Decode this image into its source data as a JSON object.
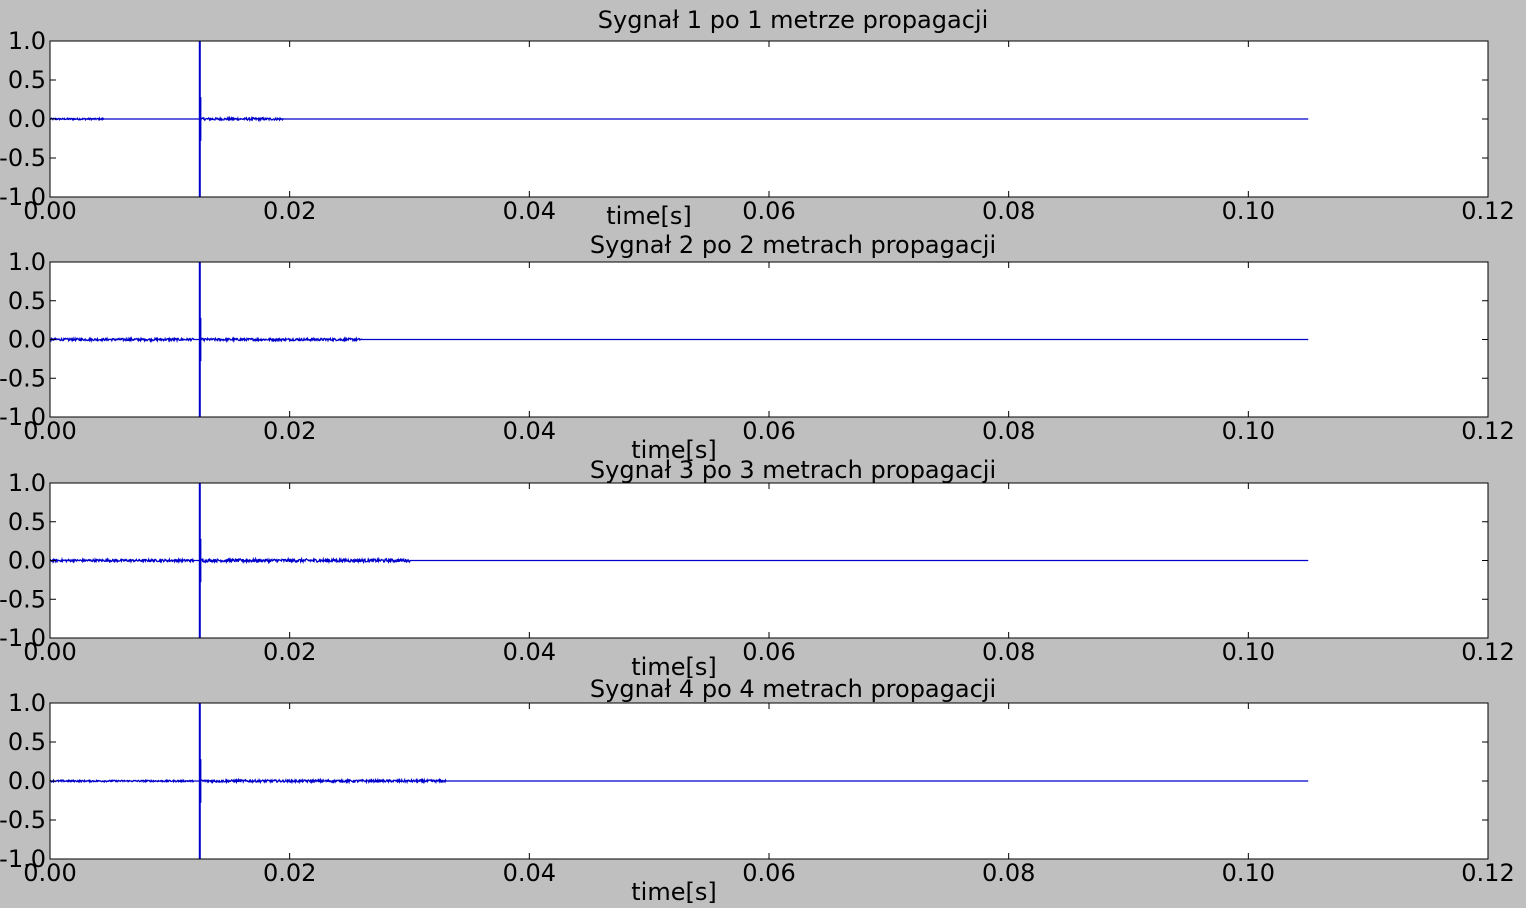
{
  "figure": {
    "background": "#bfbfbf",
    "line_color": "#0000cc"
  },
  "chart_data": [
    {
      "type": "line",
      "title": "Sygnał 1 po 1 metrze propagacji",
      "xlabel": "time[s]",
      "ylabel": "",
      "xlim": [
        0,
        0.12
      ],
      "ylim": [
        -1.0,
        1.0
      ],
      "xticks": [
        "0.00",
        "0.02",
        "0.04",
        "0.06",
        "0.08",
        "0.10",
        "0.12"
      ],
      "yticks": [
        "1.0",
        "0.5",
        "0.0",
        "-0.5",
        "-1.0"
      ],
      "grid": false,
      "signal_end": 0.105,
      "impulse": {
        "t": 0.0125,
        "peak": 1.0,
        "trough": -1.0
      },
      "echoes": [
        {
          "t_start": 0.0,
          "t_end": 0.0045,
          "amp": 0.01
        },
        {
          "t_start": 0.0125,
          "t_end": 0.0195,
          "amp": 0.015
        }
      ]
    },
    {
      "type": "line",
      "title": "Sygnał 2 po 2 metrach propagacji",
      "xlabel": "time[s]",
      "ylabel": "",
      "xlim": [
        0,
        0.12
      ],
      "ylim": [
        -1.0,
        1.0
      ],
      "xticks": [
        "0.00",
        "0.02",
        "0.04",
        "0.06",
        "0.08",
        "0.10",
        "0.12"
      ],
      "yticks": [
        "1.0",
        "0.5",
        "0.0",
        "-0.5",
        "-1.0"
      ],
      "grid": false,
      "signal_end": 0.105,
      "impulse": {
        "t": 0.0125,
        "peak": 1.0,
        "trough": -1.0
      },
      "echoes": [
        {
          "t_start": 0.0,
          "t_end": 0.012,
          "amp": 0.015
        },
        {
          "t_start": 0.0125,
          "t_end": 0.026,
          "amp": 0.015
        }
      ]
    },
    {
      "type": "line",
      "title": "Sygnał 3 po 3 metrach propagacji",
      "xlabel": "time[s]",
      "ylabel": "",
      "xlim": [
        0,
        0.12
      ],
      "ylim": [
        -1.0,
        1.0
      ],
      "xticks": [
        "0.00",
        "0.02",
        "0.04",
        "0.06",
        "0.08",
        "0.10",
        "0.12"
      ],
      "yticks": [
        "1.0",
        "0.5",
        "0.0",
        "-0.5",
        "-1.0"
      ],
      "grid": false,
      "signal_end": 0.105,
      "impulse": {
        "t": 0.0125,
        "peak": 1.0,
        "trough": -1.0
      },
      "echoes": [
        {
          "t_start": 0.0,
          "t_end": 0.012,
          "amp": 0.015
        },
        {
          "t_start": 0.0125,
          "t_end": 0.03,
          "amp": 0.02
        }
      ]
    },
    {
      "type": "line",
      "title": "Sygnał 4 po 4 metrach propagacji",
      "xlabel": "time[s]",
      "ylabel": "",
      "xlim": [
        0,
        0.12
      ],
      "ylim": [
        -1.0,
        1.0
      ],
      "xticks": [
        "0.00",
        "0.02",
        "0.04",
        "0.06",
        "0.08",
        "0.10",
        "0.12"
      ],
      "yticks": [
        "1.0",
        "0.5",
        "0.0",
        "-0.5",
        "-1.0"
      ],
      "grid": false,
      "signal_end": 0.105,
      "impulse": {
        "t": 0.0125,
        "peak": 1.0,
        "trough": -1.0
      },
      "echoes": [
        {
          "t_start": 0.0,
          "t_end": 0.012,
          "amp": 0.01
        },
        {
          "t_start": 0.0125,
          "t_end": 0.033,
          "amp": 0.015
        }
      ]
    }
  ]
}
